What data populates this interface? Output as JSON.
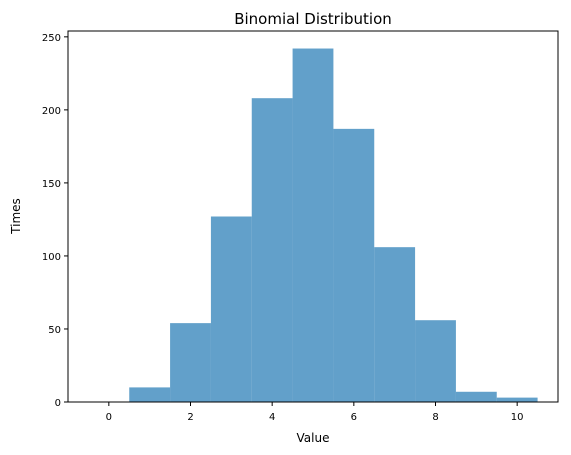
{
  "chart_data": {
    "type": "bar",
    "title": "Binomial Distribution",
    "xlabel": "Value",
    "ylabel": "Times",
    "bin_width": 1,
    "bins": [
      {
        "center": 1,
        "count": 10
      },
      {
        "center": 2,
        "count": 54
      },
      {
        "center": 3,
        "count": 127
      },
      {
        "center": 4,
        "count": 208
      },
      {
        "center": 5,
        "count": 242
      },
      {
        "center": 6,
        "count": 187
      },
      {
        "center": 7,
        "count": 106
      },
      {
        "center": 8,
        "count": 56
      },
      {
        "center": 9,
        "count": 7
      },
      {
        "center": 10,
        "count": 3
      }
    ],
    "xlim": [
      -1,
      11
    ],
    "ylim": [
      0,
      254
    ],
    "xticks": [
      0,
      2,
      4,
      6,
      8,
      10
    ],
    "yticks": [
      0,
      50,
      100,
      150,
      200,
      250
    ],
    "grid": false,
    "legend": "none",
    "bar_color": "#1f77b4",
    "bar_opacity": 0.7
  }
}
